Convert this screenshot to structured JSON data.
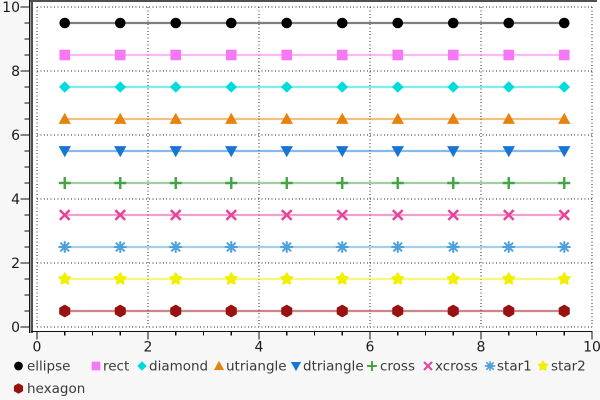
{
  "figure": {
    "bg_color": "#f7f7f7",
    "plot_bg_color": "#ffffff",
    "frame_color": "#4f4f4f",
    "axis_color": "#101010",
    "grid_color": "#000000",
    "tick_label_color": "#1a1a1a",
    "legend_text_color": "#3a3a3a"
  },
  "chart_data": {
    "type": "line",
    "title": "",
    "xlabel": "",
    "ylabel": "",
    "xlim": [
      0,
      10
    ],
    "ylim": [
      0,
      10
    ],
    "x": [
      0.5,
      1.5,
      2.5,
      3.5,
      4.5,
      5.5,
      6.5,
      7.5,
      8.5,
      9.5
    ],
    "x_major_ticks": [
      0,
      2,
      4,
      6,
      8,
      10
    ],
    "y_major_ticks": [
      0,
      2,
      4,
      6,
      8,
      10
    ],
    "x_tick_labels": [
      "0",
      "2",
      "4",
      "6",
      "8",
      "10"
    ],
    "y_tick_labels": [
      "0",
      "2",
      "4",
      "6",
      "8",
      "10"
    ],
    "minor_tick_step": 0.5,
    "grid": "dotted-major",
    "legend_position": "bottom-left",
    "line_opacity": 0.5,
    "series": [
      {
        "name": "ellipse",
        "marker": "circle",
        "y": 9.5,
        "color": "#000000"
      },
      {
        "name": "rect",
        "marker": "square",
        "y": 8.5,
        "color": "#f678f6"
      },
      {
        "name": "diamond",
        "marker": "diamond",
        "y": 7.5,
        "color": "#00dcdc"
      },
      {
        "name": "utriangle",
        "marker": "triangle-up",
        "y": 6.5,
        "color": "#e6820e"
      },
      {
        "name": "dtriangle",
        "marker": "triangle-down",
        "y": 5.5,
        "color": "#1875d2"
      },
      {
        "name": "cross",
        "marker": "plus",
        "y": 4.5,
        "color": "#44a344"
      },
      {
        "name": "xcross",
        "marker": "x",
        "y": 3.5,
        "color": "#e6449b"
      },
      {
        "name": "star1",
        "marker": "asterisk",
        "y": 2.5,
        "color": "#4ba0dd"
      },
      {
        "name": "star2",
        "marker": "star",
        "y": 1.5,
        "color": "#f0f000"
      },
      {
        "name": "hexagon",
        "marker": "hexagon",
        "y": 0.5,
        "color": "#991111"
      }
    ]
  }
}
